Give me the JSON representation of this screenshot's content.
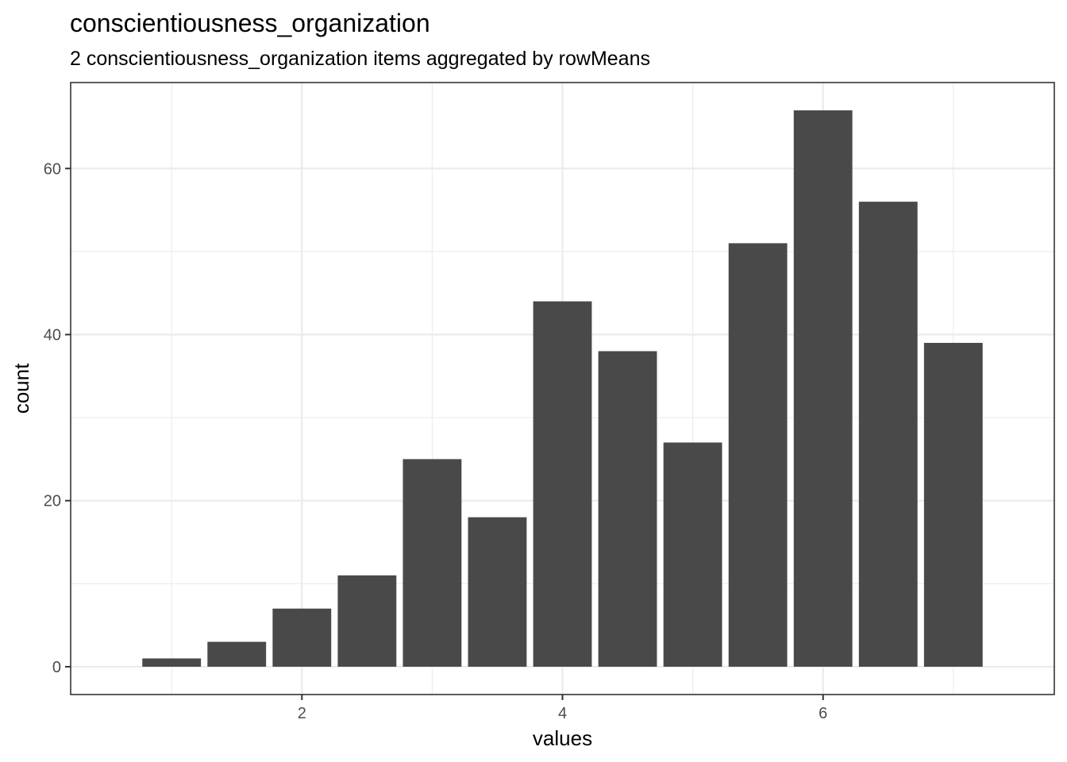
{
  "chart_data": {
    "type": "bar",
    "title": "conscientiousness_organization",
    "subtitle": "2 conscientiousness_organization items aggregated by rowMeans",
    "xlabel": "values",
    "ylabel": "count",
    "x": [
      1,
      1.5,
      2,
      2.5,
      3,
      3.5,
      4,
      4.5,
      5,
      5.5,
      6,
      6.5,
      7
    ],
    "values": [
      1,
      3,
      7,
      11,
      25,
      18,
      44,
      38,
      27,
      51,
      67,
      56,
      39
    ],
    "bar_width": 0.45,
    "xlim": [
      0.225,
      7.775
    ],
    "ylim": [
      -3.35,
      70.35
    ],
    "x_ticks": [
      2,
      4,
      6
    ],
    "x_minor_ticks": [
      1,
      3,
      5,
      7
    ],
    "y_ticks": [
      0,
      20,
      40,
      60
    ],
    "y_minor_ticks": [
      10,
      30,
      50
    ],
    "x_tick_labels": [
      "2",
      "4",
      "6"
    ],
    "y_tick_labels": [
      "0",
      "20",
      "40",
      "60"
    ],
    "bar_color": "#494949",
    "panel_border_color": "#333333",
    "grid": true,
    "legend": "none"
  }
}
